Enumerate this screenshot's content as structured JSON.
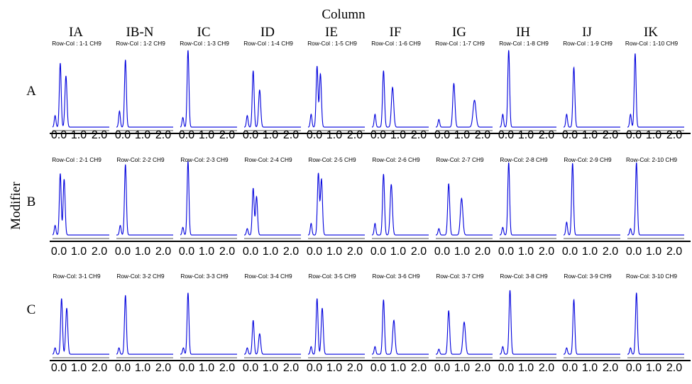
{
  "chart_data": {
    "type": "line",
    "title": "Column",
    "ylabel": "Modifier",
    "columns": [
      "IA",
      "IB-N",
      "IC",
      "ID",
      "IE",
      "IF",
      "IG",
      "IH",
      "IJ",
      "IK"
    ],
    "rows": [
      "A",
      "B",
      "C"
    ],
    "x_ticks": [
      "0.0",
      "1.0",
      "2.0"
    ],
    "xlim": [
      0.0,
      2.2
    ],
    "ylim": [
      0,
      1.15
    ],
    "line_color": "#0000dd",
    "axis_color": "#000000",
    "grid": false,
    "panels": [
      {
        "label": "Row-Col : 1-1 CH9",
        "row": 0,
        "col": 0,
        "peaks": [
          [
            0.1,
            0.18
          ],
          [
            0.3,
            1.0
          ],
          [
            0.52,
            0.8
          ]
        ]
      },
      {
        "label": "Row-Col : 1-2 CH9",
        "row": 0,
        "col": 1,
        "peaks": [
          [
            0.12,
            0.25
          ],
          [
            0.35,
            1.05
          ]
        ]
      },
      {
        "label": "Row-Col : 1-3 CH9",
        "row": 0,
        "col": 2,
        "peaks": [
          [
            0.1,
            0.15
          ],
          [
            0.3,
            1.2
          ]
        ]
      },
      {
        "label": "Row-Col : 1-4 CH9",
        "row": 0,
        "col": 3,
        "peaks": [
          [
            0.12,
            0.18
          ],
          [
            0.35,
            0.88
          ],
          [
            0.6,
            0.58
          ]
        ]
      },
      {
        "label": "Row-Col : 1-5 CH9",
        "row": 0,
        "col": 4,
        "peaks": [
          [
            0.12,
            0.2
          ],
          [
            0.35,
            0.95
          ],
          [
            0.48,
            0.83
          ]
        ]
      },
      {
        "label": "Row-Col : 1-6 CH9",
        "row": 0,
        "col": 5,
        "peaks": [
          [
            0.12,
            0.2
          ],
          [
            0.45,
            0.88
          ],
          [
            0.8,
            0.62
          ]
        ]
      },
      {
        "label": "Row-Col : 1-7 CH9",
        "row": 0,
        "col": 6,
        "peaks": [
          [
            0.12,
            0.12
          ],
          [
            0.7,
            0.68
          ],
          [
            1.5,
            0.42
          ]
        ]
      },
      {
        "label": "Row-Col : 1-8 CH9",
        "row": 0,
        "col": 7,
        "peaks": [
          [
            0.12,
            0.2
          ],
          [
            0.35,
            1.2
          ]
        ]
      },
      {
        "label": "Row-Col : 1-9 CH9",
        "row": 0,
        "col": 8,
        "peaks": [
          [
            0.12,
            0.2
          ],
          [
            0.4,
            0.93
          ]
        ]
      },
      {
        "label": "Row-Col : 1-10 CH9",
        "row": 0,
        "col": 9,
        "peaks": [
          [
            0.12,
            0.2
          ],
          [
            0.3,
            1.15
          ]
        ]
      },
      {
        "label": "Row-Col : 2-1 CH9",
        "row": 1,
        "col": 0,
        "peaks": [
          [
            0.1,
            0.15
          ],
          [
            0.3,
            0.96
          ],
          [
            0.45,
            0.87
          ]
        ]
      },
      {
        "label": "Row-Col: 2-2 CH9",
        "row": 1,
        "col": 1,
        "peaks": [
          [
            0.15,
            0.15
          ],
          [
            0.35,
            1.1
          ]
        ]
      },
      {
        "label": "Row-Col: 2-3 CH9",
        "row": 1,
        "col": 2,
        "peaks": [
          [
            0.1,
            0.12
          ],
          [
            0.3,
            1.15
          ]
        ]
      },
      {
        "label": "Row-Col: 2-4 CH9",
        "row": 1,
        "col": 3,
        "peaks": [
          [
            0.12,
            0.1
          ],
          [
            0.35,
            0.73
          ],
          [
            0.48,
            0.6
          ]
        ]
      },
      {
        "label": "Row-Col: 2-5 CH9",
        "row": 1,
        "col": 4,
        "peaks": [
          [
            0.12,
            0.18
          ],
          [
            0.4,
            0.96
          ],
          [
            0.52,
            0.87
          ]
        ]
      },
      {
        "label": "Row-Col: 2-6 CH9",
        "row": 1,
        "col": 5,
        "peaks": [
          [
            0.12,
            0.18
          ],
          [
            0.45,
            0.95
          ],
          [
            0.75,
            0.79
          ]
        ]
      },
      {
        "label": "Row-Col: 2-7 CH9",
        "row": 1,
        "col": 6,
        "peaks": [
          [
            0.12,
            0.1
          ],
          [
            0.5,
            0.8
          ],
          [
            1.0,
            0.57
          ]
        ]
      },
      {
        "label": "Row-Col: 2-8 CH9",
        "row": 1,
        "col": 7,
        "peaks": [
          [
            0.12,
            0.12
          ],
          [
            0.35,
            1.13
          ]
        ]
      },
      {
        "label": "Row-Col: 2-9 CH9",
        "row": 1,
        "col": 8,
        "peaks": [
          [
            0.12,
            0.2
          ],
          [
            0.35,
            1.12
          ]
        ]
      },
      {
        "label": "Row-Col: 2-10 CH9",
        "row": 1,
        "col": 9,
        "peaks": [
          [
            0.12,
            0.1
          ],
          [
            0.35,
            1.13
          ]
        ]
      },
      {
        "label": "Row-Col: 3-1 CH9",
        "row": 2,
        "col": 0,
        "peaks": [
          [
            0.1,
            0.1
          ],
          [
            0.35,
            0.87
          ],
          [
            0.55,
            0.72
          ]
        ]
      },
      {
        "label": "Row-Col: 3-2 CH9",
        "row": 2,
        "col": 1,
        "peaks": [
          [
            0.1,
            0.1
          ],
          [
            0.35,
            0.92
          ]
        ]
      },
      {
        "label": "Row-Col: 3-3 CH9",
        "row": 2,
        "col": 2,
        "peaks": [
          [
            0.12,
            0.1
          ],
          [
            0.3,
            0.96
          ]
        ]
      },
      {
        "label": "Row-Col: 3-4 CH9",
        "row": 2,
        "col": 3,
        "peaks": [
          [
            0.12,
            0.1
          ],
          [
            0.35,
            0.53
          ],
          [
            0.6,
            0.32
          ]
        ]
      },
      {
        "label": "Row-Col: 3-5 CH9",
        "row": 2,
        "col": 4,
        "peaks": [
          [
            0.12,
            0.12
          ],
          [
            0.35,
            0.87
          ],
          [
            0.55,
            0.72
          ]
        ]
      },
      {
        "label": "Row-Col: 3-6 CH9",
        "row": 2,
        "col": 5,
        "peaks": [
          [
            0.12,
            0.12
          ],
          [
            0.45,
            0.85
          ],
          [
            0.85,
            0.53
          ]
        ]
      },
      {
        "label": "Row-Col: 3-7 CH9",
        "row": 2,
        "col": 6,
        "peaks": [
          [
            0.12,
            0.08
          ],
          [
            0.5,
            0.68
          ],
          [
            1.1,
            0.5
          ]
        ]
      },
      {
        "label": "Row-Col: 3-8 CH9",
        "row": 2,
        "col": 7,
        "peaks": [
          [
            0.12,
            0.12
          ],
          [
            0.4,
            1.0
          ]
        ]
      },
      {
        "label": "Row-Col: 3-9 CH9",
        "row": 2,
        "col": 8,
        "peaks": [
          [
            0.12,
            0.1
          ],
          [
            0.4,
            0.85
          ]
        ]
      },
      {
        "label": "Row-Col: 3-10 CH9",
        "row": 2,
        "col": 9,
        "peaks": [
          [
            0.12,
            0.1
          ],
          [
            0.35,
            0.96
          ]
        ]
      }
    ]
  }
}
